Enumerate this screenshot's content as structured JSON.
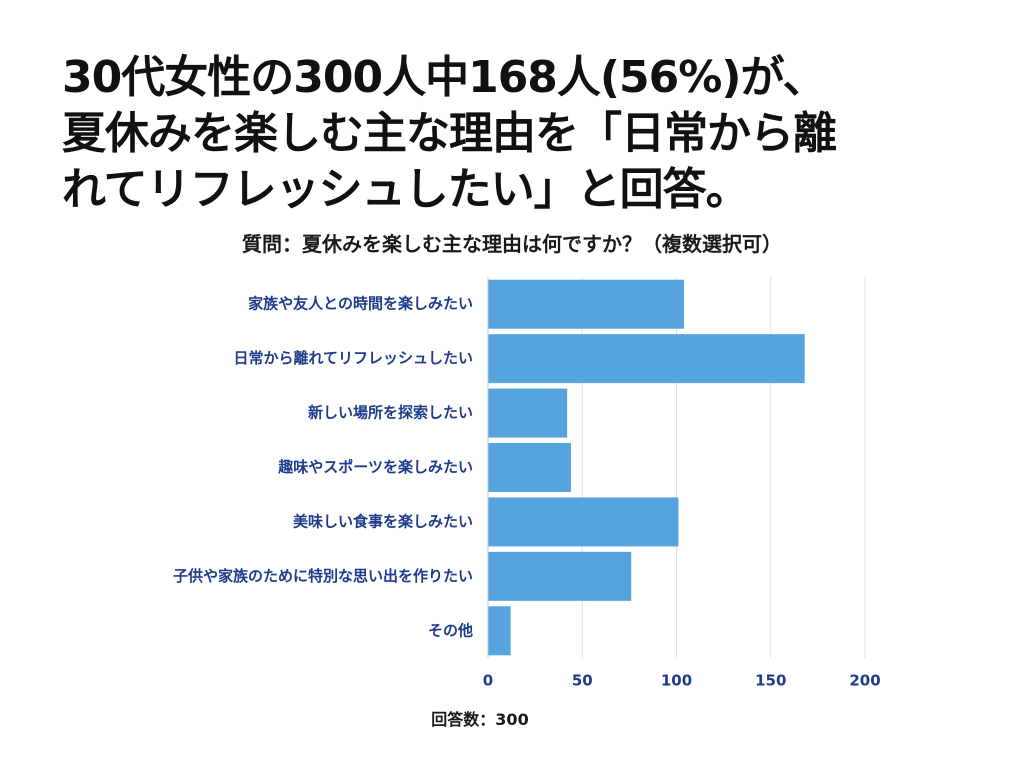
{
  "headline": {
    "line1": "30代女性の300人中168人(56%)が、",
    "line2": "夏休みを楽しむ主な理由を「日常から離",
    "line3": "れてリフレッシュしたい」と回答。"
  },
  "chart_data": {
    "type": "bar",
    "orientation": "horizontal",
    "title": "質問：夏休みを楽しむ主な理由は何ですか？（複数選択可）",
    "categories": [
      "家族や友人との時間を楽しみたい",
      "日常から離れてリフレッシュしたい",
      "新しい場所を探索したい",
      "趣味やスポーツを楽しみたい",
      "美味しい食事を楽しみたい",
      "子供や家族のために特別な思い出を作りたい",
      "その他"
    ],
    "values": [
      104,
      168,
      42,
      44,
      101,
      76,
      12
    ],
    "xlim": [
      0,
      200
    ],
    "xticks": [
      "0",
      "50",
      "100",
      "150",
      "200"
    ],
    "grid": true,
    "legend": "none",
    "bar_color": "#55a4e0",
    "label_color": "#1f3b8c"
  },
  "footnote": "回答数：300"
}
